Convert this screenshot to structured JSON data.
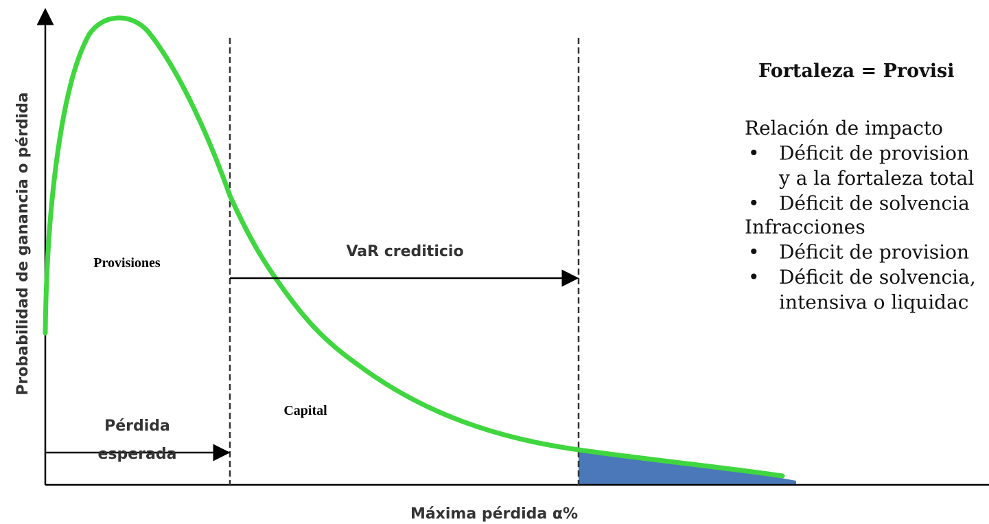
{
  "diagram": {
    "y_axis_label": "Probabilidad de ganancia o pérdida",
    "x_axis_label": "Máxima pérdida α%",
    "region_labels": [
      "Provisiones",
      "Capital"
    ],
    "expected_loss_label": [
      "Pérdida",
      "esperada"
    ],
    "var_label": "VaR crediticio"
  },
  "panel": {
    "title": "Fortaleza = Provisi",
    "sections": [
      {
        "heading": "Relación de impacto",
        "items": [
          [
            "Déficit de provision",
            "y a la fortaleza total"
          ],
          [
            "Déficit de solvencia"
          ]
        ]
      },
      {
        "heading": "Infracciones",
        "items": [
          [
            "Déficit de provision"
          ],
          [
            "Déficit de solvencia,",
            "intensiva o liquidac"
          ]
        ]
      }
    ]
  }
}
